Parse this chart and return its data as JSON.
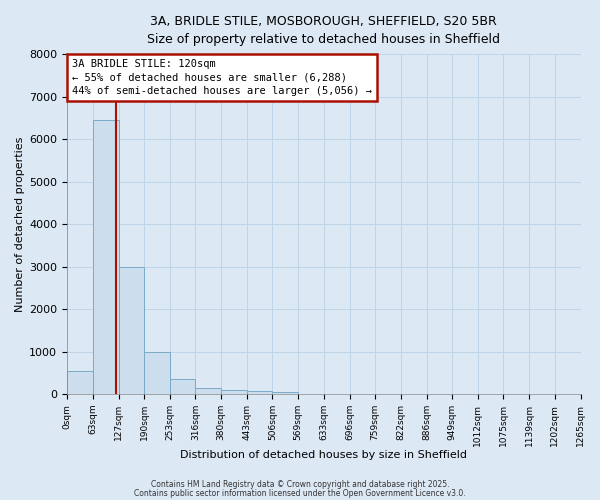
{
  "title_line1": "3A, BRIDLE STILE, MOSBOROUGH, SHEFFIELD, S20 5BR",
  "title_line2": "Size of property relative to detached houses in Sheffield",
  "xlabel": "Distribution of detached houses by size in Sheffield",
  "ylabel": "Number of detached properties",
  "bar_values": [
    550,
    6450,
    3000,
    1000,
    350,
    150,
    100,
    75,
    50,
    0,
    0,
    0,
    0,
    0,
    0,
    0,
    0,
    0,
    0,
    0
  ],
  "bin_edges": [
    0,
    63,
    127,
    190,
    253,
    316,
    380,
    443,
    506,
    569,
    633,
    696,
    759,
    822,
    886,
    949,
    1012,
    1075,
    1139,
    1202,
    1265
  ],
  "bar_color": "#ccdded",
  "bar_edgecolor": "#7aaac8",
  "property_size": 120,
  "vline_color": "#aa1100",
  "annotation_text": "3A BRIDLE STILE: 120sqm\n← 55% of detached houses are smaller (6,288)\n44% of semi-detached houses are larger (5,056) →",
  "annotation_box_edgecolor": "#aa1100",
  "annotation_box_facecolor": "#ffffff",
  "ylim": [
    0,
    8000
  ],
  "yticks": [
    0,
    1000,
    2000,
    3000,
    4000,
    5000,
    6000,
    7000,
    8000
  ],
  "grid_color": "#c0d4e8",
  "background_color": "#dde8f5",
  "footer_line1": "Contains HM Land Registry data © Crown copyright and database right 2025.",
  "footer_line2": "Contains public sector information licensed under the Open Government Licence v3.0."
}
